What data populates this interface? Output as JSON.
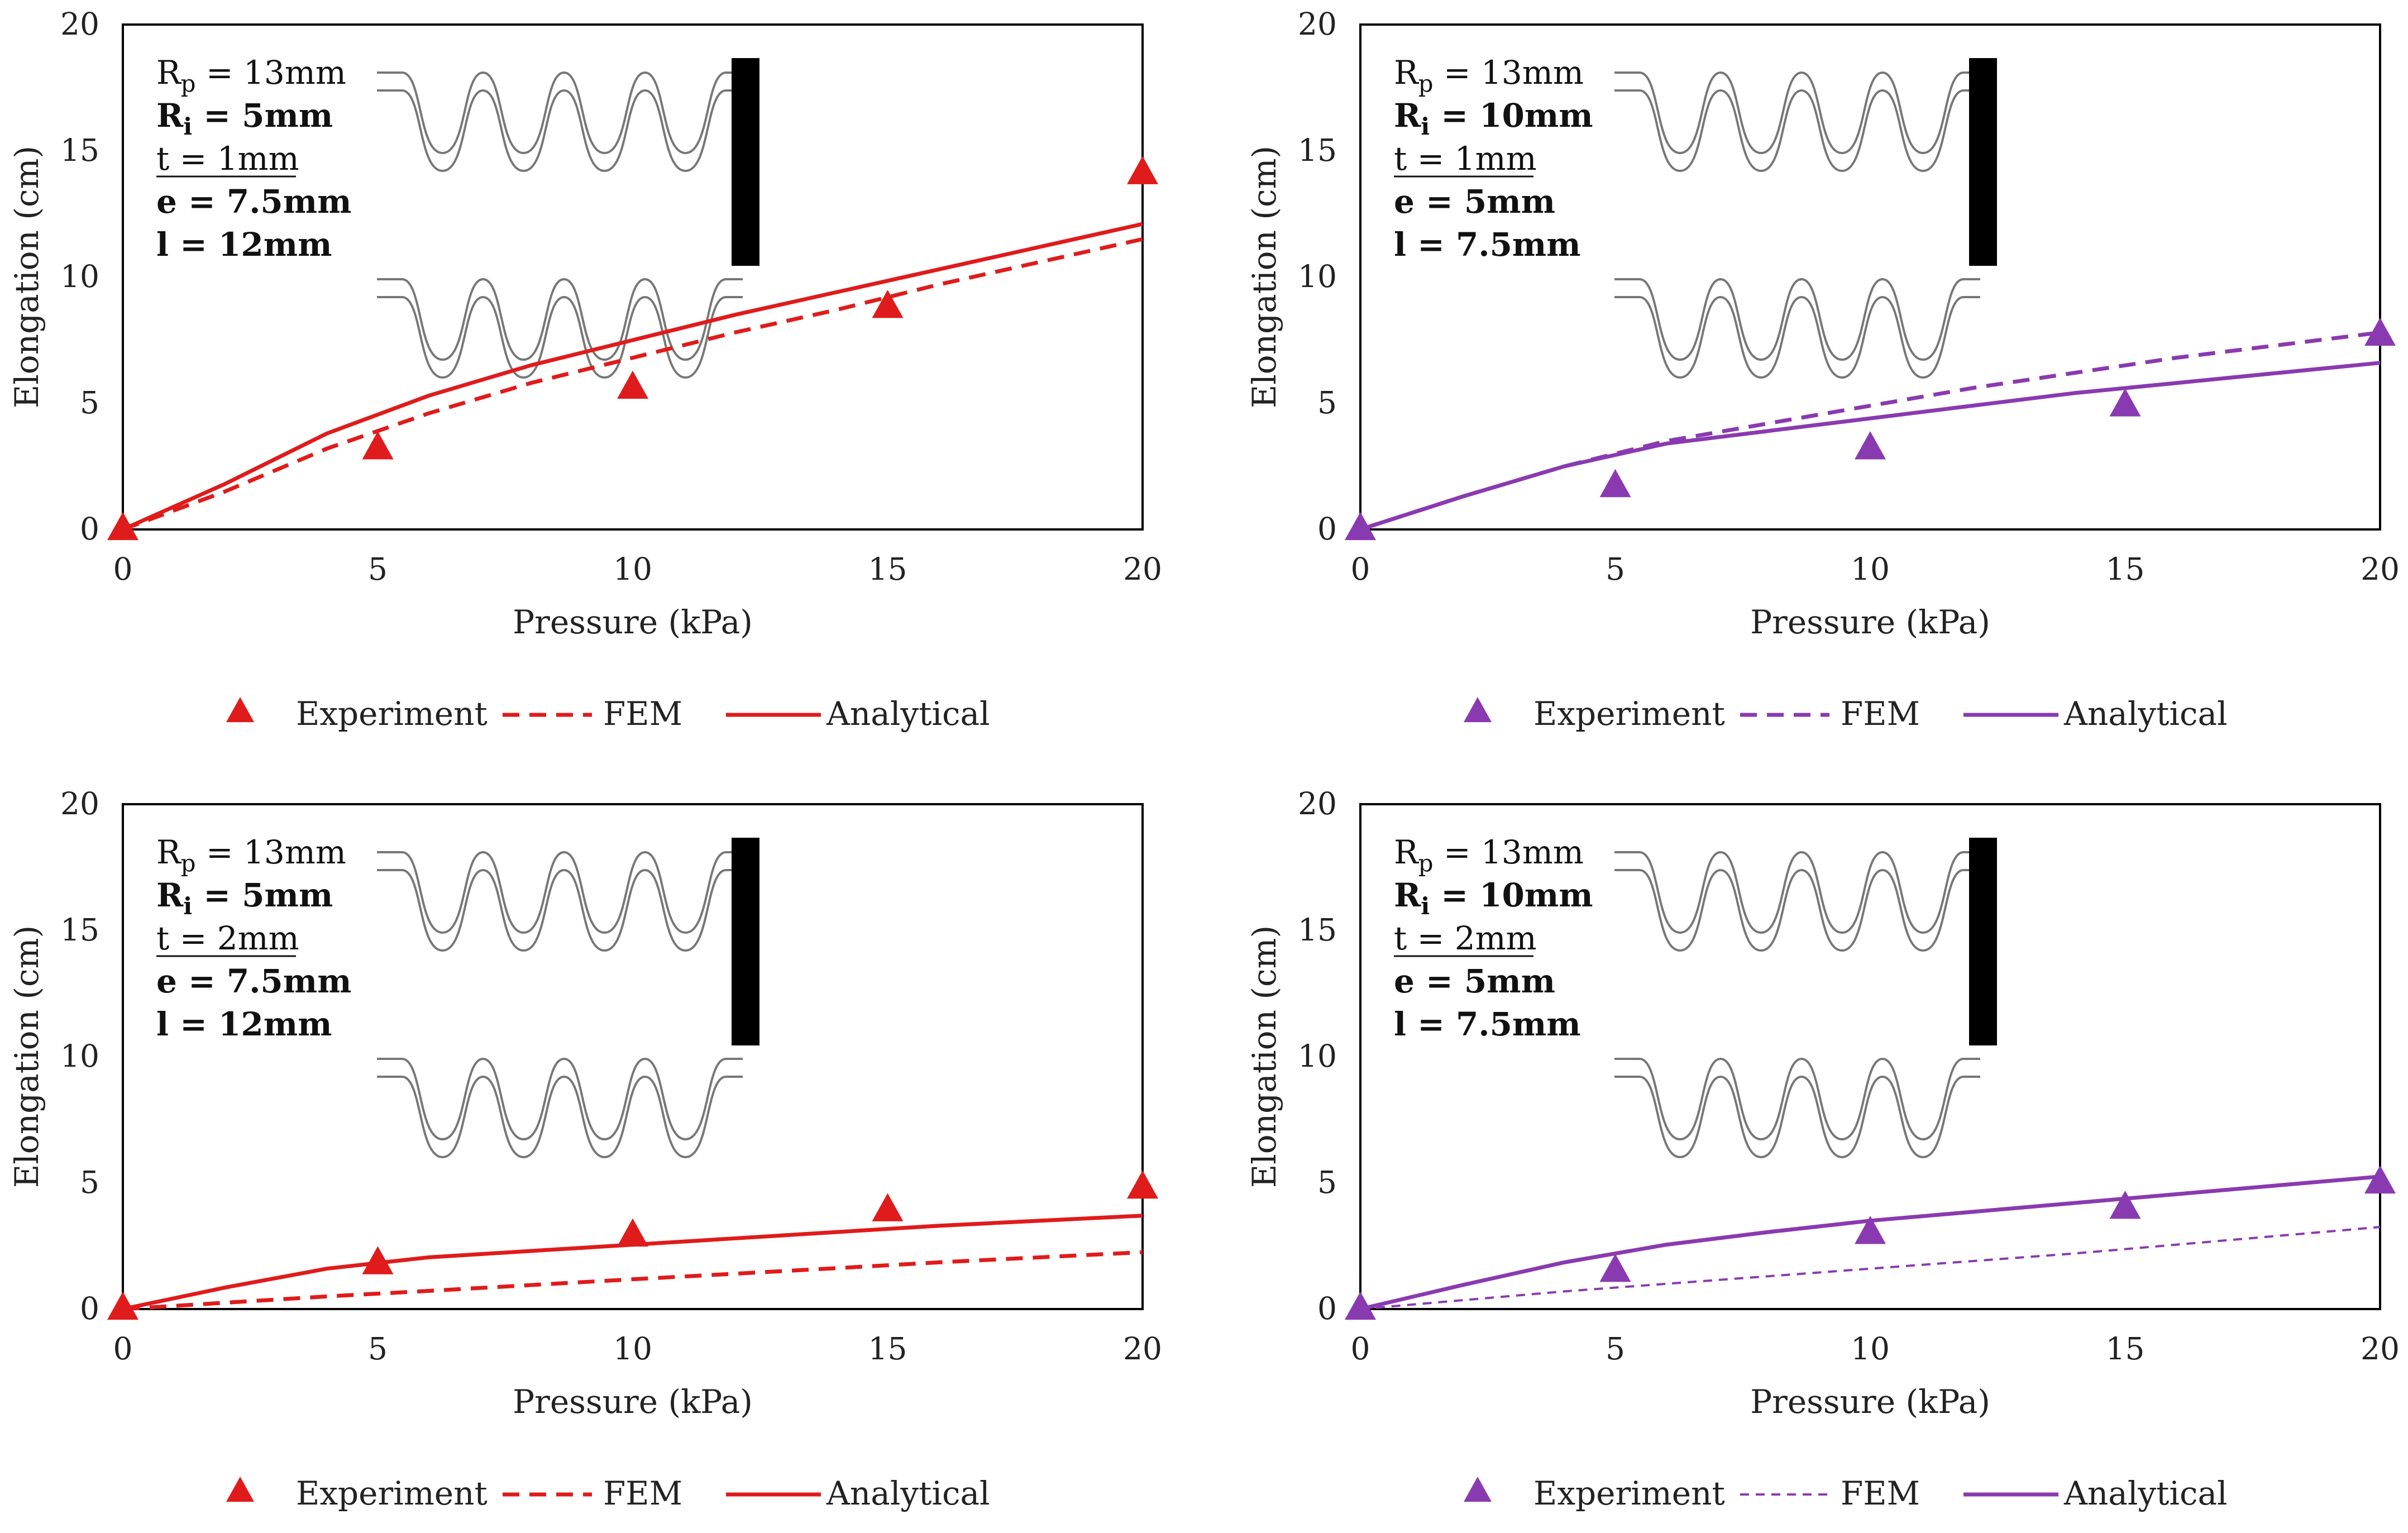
{
  "figure": {
    "x_axis_label": "Pressure (kPa)",
    "y_axis_label": "Elongation (cm)"
  },
  "chart_data": [
    {
      "type": "line",
      "id": "top-left",
      "xlabel": "Pressure (kPa)",
      "ylabel": "Elongation (cm)",
      "xlim": [
        0,
        20
      ],
      "ylim": [
        0,
        20
      ],
      "xticks": [
        0,
        5,
        10,
        15,
        20
      ],
      "yticks": [
        0,
        5,
        10,
        15,
        20
      ],
      "color": "#e01b1b",
      "params": [
        {
          "main": "R",
          "sub": "p",
          "rest": " = 13mm",
          "bold": false,
          "underline": false
        },
        {
          "main": "R",
          "sub": "i",
          "rest": " = 5mm",
          "bold": true,
          "underline": false
        },
        {
          "main": "t = 1mm",
          "sub": "",
          "rest": "",
          "bold": false,
          "underline": true
        },
        {
          "main": "e = 7.5mm",
          "sub": "",
          "rest": "",
          "bold": true,
          "underline": false
        },
        {
          "main": "l = 12mm",
          "sub": "",
          "rest": "",
          "bold": true,
          "underline": false
        }
      ],
      "legend": {
        "experiment": "Experiment",
        "fem": "FEM",
        "analytical": "Analytical"
      },
      "fem_style": "bold",
      "series": [
        {
          "name": "Experiment",
          "style": "markers",
          "x": [
            0,
            5,
            10,
            15,
            20
          ],
          "y": [
            0,
            3.2,
            5.6,
            8.8,
            14.1
          ]
        },
        {
          "name": "FEM",
          "style": "dashed",
          "x": [
            0,
            2,
            4,
            6,
            8,
            10,
            12,
            14,
            16,
            18,
            20
          ],
          "y": [
            0,
            1.5,
            3.2,
            4.6,
            5.8,
            6.8,
            7.8,
            8.7,
            9.7,
            10.6,
            11.5
          ]
        },
        {
          "name": "Analytical",
          "style": "solid",
          "x": [
            0,
            2,
            4,
            6,
            8,
            10,
            12,
            14,
            16,
            18,
            20
          ],
          "y": [
            0,
            1.8,
            3.8,
            5.3,
            6.5,
            7.5,
            8.5,
            9.4,
            10.3,
            11.2,
            12.1
          ]
        }
      ]
    },
    {
      "type": "line",
      "id": "top-right",
      "xlabel": "Pressure (kPa)",
      "ylabel": "Elongation (cm)",
      "xlim": [
        0,
        20
      ],
      "ylim": [
        0,
        20
      ],
      "xticks": [
        0,
        5,
        10,
        15,
        20
      ],
      "yticks": [
        0,
        5,
        10,
        15,
        20
      ],
      "color": "#8a3ab0",
      "params": [
        {
          "main": "R",
          "sub": "p",
          "rest": " = 13mm",
          "bold": false,
          "underline": false
        },
        {
          "main": "R",
          "sub": "i",
          "rest": " = 10mm",
          "bold": true,
          "underline": false
        },
        {
          "main": "t = 1mm",
          "sub": "",
          "rest": "",
          "bold": false,
          "underline": true
        },
        {
          "main": "e = 5mm",
          "sub": "",
          "rest": "",
          "bold": true,
          "underline": false
        },
        {
          "main": "l = 7.5mm",
          "sub": "",
          "rest": "",
          "bold": true,
          "underline": false
        }
      ],
      "legend": {
        "experiment": "Experiment",
        "fem": "FEM",
        "analytical": "Analytical"
      },
      "fem_style": "bold",
      "series": [
        {
          "name": "Experiment",
          "style": "markers",
          "x": [
            0,
            5,
            10,
            15,
            20
          ],
          "y": [
            0,
            1.7,
            3.2,
            4.9,
            7.7
          ]
        },
        {
          "name": "FEM",
          "style": "dashed",
          "x": [
            0,
            2,
            4,
            6,
            8,
            10,
            12,
            14,
            16,
            18,
            20
          ],
          "y": [
            0,
            1.3,
            2.5,
            3.5,
            4.2,
            4.9,
            5.6,
            6.2,
            6.8,
            7.3,
            7.8
          ]
        },
        {
          "name": "Analytical",
          "style": "solid",
          "x": [
            0,
            2,
            4,
            6,
            8,
            10,
            12,
            14,
            16,
            18,
            20
          ],
          "y": [
            0,
            1.3,
            2.5,
            3.4,
            3.9,
            4.4,
            4.9,
            5.4,
            5.8,
            6.2,
            6.6
          ]
        }
      ]
    },
    {
      "type": "line",
      "id": "bottom-left",
      "xlabel": "Pressure (kPa)",
      "ylabel": "Elongation (cm)",
      "xlim": [
        0,
        20
      ],
      "ylim": [
        0,
        20
      ],
      "xticks": [
        0,
        5,
        10,
        15,
        20
      ],
      "yticks": [
        0,
        5,
        10,
        15,
        20
      ],
      "color": "#e01b1b",
      "params": [
        {
          "main": "R",
          "sub": "p",
          "rest": " = 13mm",
          "bold": false,
          "underline": false
        },
        {
          "main": "R",
          "sub": "i",
          "rest": " = 5mm",
          "bold": true,
          "underline": false
        },
        {
          "main": "t = 2mm",
          "sub": "",
          "rest": "",
          "bold": false,
          "underline": true
        },
        {
          "main": "e = 7.5mm",
          "sub": "",
          "rest": "",
          "bold": true,
          "underline": false
        },
        {
          "main": "l = 12mm",
          "sub": "",
          "rest": "",
          "bold": true,
          "underline": false
        }
      ],
      "legend": {
        "experiment": "Experiment",
        "fem": "FEM",
        "analytical": "Analytical"
      },
      "fem_style": "bold",
      "series": [
        {
          "name": "Experiment",
          "style": "markers",
          "x": [
            0,
            5,
            10,
            15,
            20
          ],
          "y": [
            0,
            1.8,
            2.9,
            3.9,
            4.8
          ]
        },
        {
          "name": "FEM",
          "style": "dashed",
          "x": [
            0,
            2,
            4,
            6,
            8,
            10,
            12,
            14,
            16,
            18,
            20
          ],
          "y": [
            0,
            0.25,
            0.5,
            0.72,
            0.95,
            1.18,
            1.4,
            1.62,
            1.85,
            2.05,
            2.25
          ]
        },
        {
          "name": "Analytical",
          "style": "solid",
          "x": [
            0,
            2,
            4,
            6,
            8,
            10,
            12,
            14,
            16,
            18,
            20
          ],
          "y": [
            0,
            0.85,
            1.6,
            2.05,
            2.3,
            2.55,
            2.8,
            3.05,
            3.3,
            3.5,
            3.7
          ]
        }
      ]
    },
    {
      "type": "line",
      "id": "bottom-right",
      "xlabel": "Pressure (kPa)",
      "ylabel": "Elongation (cm)",
      "xlim": [
        0,
        20
      ],
      "ylim": [
        0,
        20
      ],
      "xticks": [
        0,
        5,
        10,
        15,
        20
      ],
      "yticks": [
        0,
        5,
        10,
        15,
        20
      ],
      "color": "#8a3ab0",
      "params": [
        {
          "main": "R",
          "sub": "p",
          "rest": " = 13mm",
          "bold": false,
          "underline": false
        },
        {
          "main": "R",
          "sub": "i",
          "rest": " = 10mm",
          "bold": true,
          "underline": false
        },
        {
          "main": "t = 2mm",
          "sub": "",
          "rest": "",
          "bold": false,
          "underline": true
        },
        {
          "main": "e = 5mm",
          "sub": "",
          "rest": "",
          "bold": true,
          "underline": false
        },
        {
          "main": "l = 7.5mm",
          "sub": "",
          "rest": "",
          "bold": true,
          "underline": false
        }
      ],
      "legend": {
        "experiment": "Experiment",
        "fem": "FEM",
        "analytical": "Analytical"
      },
      "fem_style": "thin",
      "series": [
        {
          "name": "Experiment",
          "style": "markers",
          "x": [
            0,
            5,
            10,
            15,
            20
          ],
          "y": [
            0,
            1.5,
            3.0,
            4.0,
            5.0
          ]
        },
        {
          "name": "FEM",
          "style": "dashed",
          "x": [
            0,
            2,
            4,
            6,
            8,
            10,
            12,
            14,
            16,
            18,
            20
          ],
          "y": [
            0,
            0.35,
            0.7,
            1.0,
            1.3,
            1.6,
            1.9,
            2.2,
            2.55,
            2.9,
            3.25
          ]
        },
        {
          "name": "Analytical",
          "style": "solid",
          "x": [
            0,
            2,
            4,
            6,
            8,
            10,
            12,
            14,
            16,
            18,
            20
          ],
          "y": [
            0,
            0.95,
            1.85,
            2.55,
            3.05,
            3.5,
            3.85,
            4.2,
            4.55,
            4.9,
            5.25
          ]
        }
      ]
    }
  ]
}
